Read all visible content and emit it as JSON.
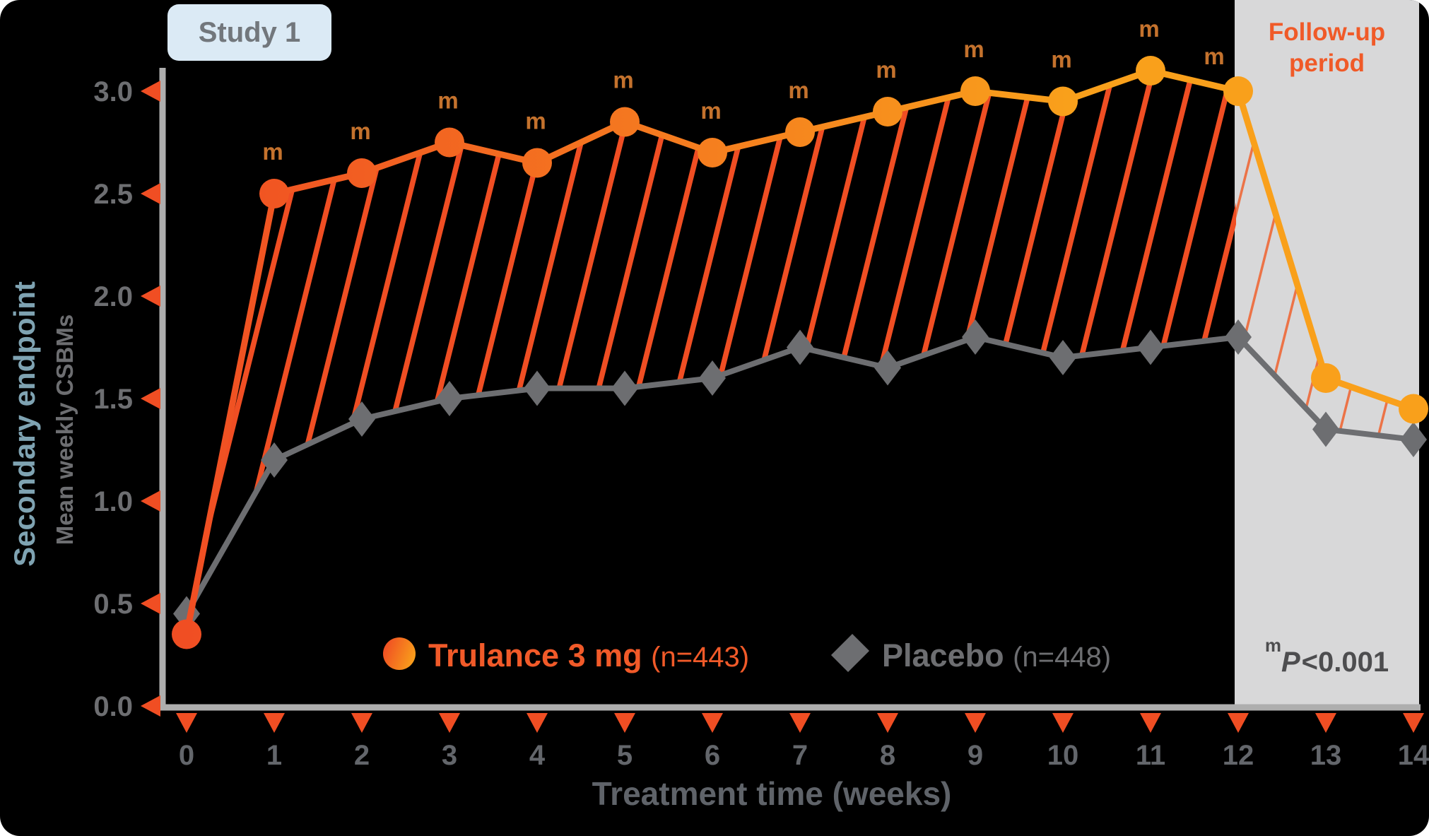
{
  "header": {
    "study_label": "Study 1"
  },
  "followup": {
    "label": "Follow-up period",
    "p_sup": "m",
    "p_main": "P",
    "p_rest": "<0.001"
  },
  "legend": {
    "trulance": {
      "label": "Trulance 3 mg",
      "n": "(n=443)"
    },
    "placebo": {
      "label": "Placebo",
      "n": "(n=448)"
    }
  },
  "chart_data": {
    "type": "line",
    "title": "Study 1",
    "xlabel": "Treatment time (weeks)",
    "ylabel_primary": "Secondary endpoint",
    "ylabel_secondary": "Mean weekly CSBMs",
    "x": [
      0,
      1,
      2,
      3,
      4,
      5,
      6,
      7,
      8,
      9,
      10,
      11,
      12,
      13,
      14
    ],
    "xlim": [
      0,
      14
    ],
    "ylim": [
      0.0,
      3.0
    ],
    "y_ticks": [
      {
        "label": "0.0",
        "value": 0.0
      },
      {
        "label": "0.5",
        "value": 0.5
      },
      {
        "label": "1.0",
        "value": 1.0
      },
      {
        "label": "1.5",
        "value": 1.5
      },
      {
        "label": "2.0",
        "value": 2.0
      },
      {
        "label": "2.5",
        "value": 2.5
      },
      {
        "label": "3.0",
        "value": 3.0
      }
    ],
    "series": [
      {
        "name": "Trulance 3 mg (n=443)",
        "marker": "circle",
        "values": [
          0.35,
          2.5,
          2.6,
          2.75,
          2.65,
          2.85,
          2.7,
          2.8,
          2.9,
          3.0,
          2.95,
          3.1,
          3.0,
          1.6,
          1.45
        ]
      },
      {
        "name": "Placebo (n=448)",
        "marker": "diamond",
        "values": [
          0.45,
          1.2,
          1.4,
          1.5,
          1.55,
          1.55,
          1.6,
          1.75,
          1.65,
          1.8,
          1.7,
          1.75,
          1.8,
          1.35,
          1.3
        ]
      }
    ],
    "significance": {
      "symbol": "m",
      "weeks": [
        1,
        2,
        3,
        4,
        5,
        6,
        7,
        8,
        9,
        10,
        11,
        12
      ],
      "note": "mP<0.001"
    },
    "followup_start_week": 12,
    "hatch_between_series": true,
    "grid": false,
    "legend_position": "bottom-center",
    "colors": {
      "trulance_start": "#f04e23",
      "trulance_mid": "#f57e1f",
      "trulance_end": "#f9a01b",
      "placebo": "#6d6e71",
      "hatch": "#f04e23",
      "hatch_followup": "#ec7347",
      "axis": "#aeaeae",
      "tick_triangle": "#f04e23",
      "x_tick_label": "#63666b",
      "y_tick_label": "#6d6e71",
      "sig_label": "#c4722d",
      "followup_panel": "#d8d8d9",
      "followup_text": "#f05a28",
      "p_text": "#4d4d4f",
      "badge_bg": "#dbeaf5",
      "badge_text": "#72777c",
      "ylabel_teal": "#7fa3b2"
    }
  }
}
